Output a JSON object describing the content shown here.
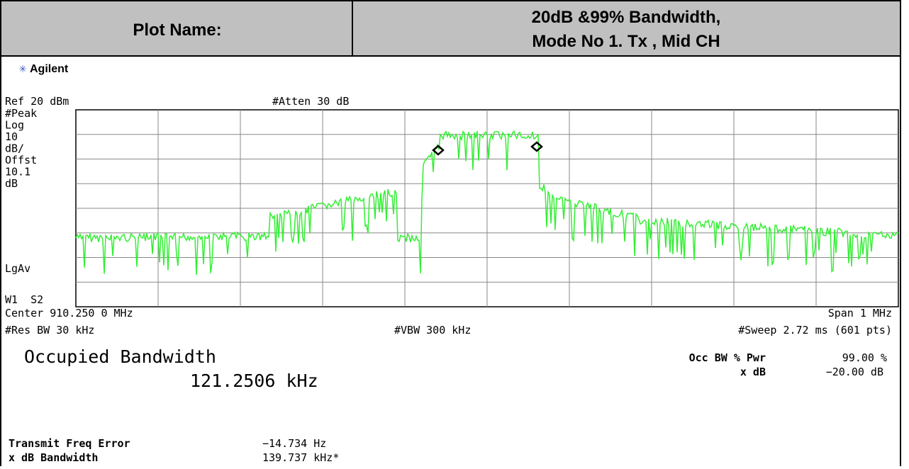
{
  "header": {
    "label": "Plot Name:",
    "title_lines": [
      "20dB &99% Bandwidth,",
      "Mode No 1. Tx , Mid CH"
    ]
  },
  "screen": {
    "brand": "Agilent",
    "ref": "Ref 20 dBm",
    "atten": "#Atten 30 dB",
    "left_labels": [
      "#Peak",
      "Log",
      "10",
      "dB/",
      "Offst",
      "10.1",
      "dB"
    ],
    "lgav": "LgAv",
    "w1s2": "W1  S2",
    "center": "Center 910.250 0 MHz",
    "span": "Span 1 MHz",
    "res_bw": "#Res BW 30 kHz",
    "vbw": "#VBW 300 kHz",
    "sweep": "#Sweep 2.72 ms (601 pts)",
    "occ_title": "Occupied Bandwidth",
    "occ_value": "121.2506 kHz",
    "occ_pwr_label": "Occ BW % Pwr",
    "occ_pwr_value": "99.00 %",
    "xdb_label": "x dB",
    "xdb_value": "−20.00 dB",
    "freq_err_label": "Transmit Freq Error",
    "freq_err_value": "−14.734 Hz",
    "xdb_bw_label": "x dB Bandwidth",
    "xdb_bw_value": "139.737 kHz*"
  }
}
